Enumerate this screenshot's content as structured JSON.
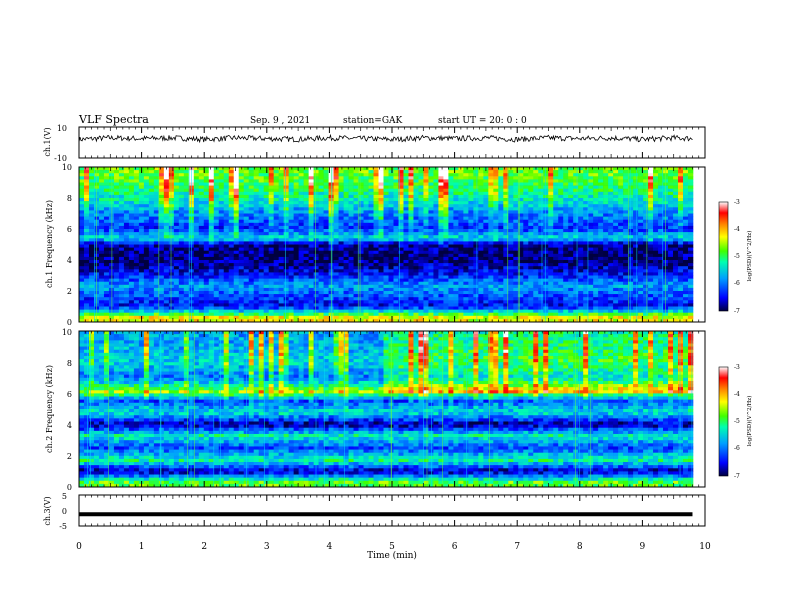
{
  "header": {
    "title": "VLF Spectra",
    "date": "Sep. 9 , 2021",
    "station": "station=GAK",
    "start_ut": "start UT =  20: 0 : 0"
  },
  "time_axis": {
    "label": "Time (min)",
    "ticks": [
      "0",
      "1",
      "2",
      "3",
      "4",
      "5",
      "6",
      "7",
      "8",
      "9",
      "10"
    ]
  },
  "panels": {
    "ch1_wave": {
      "ylabel": "ch.1(V)",
      "yticks": [
        "10",
        "-10"
      ]
    },
    "ch1_spec": {
      "ylabel": "ch.1 Frequency (kHz)",
      "yticks": [
        "0",
        "2",
        "4",
        "6",
        "8",
        "10"
      ]
    },
    "ch2_spec": {
      "ylabel": "ch.2 Frequency (kHz)",
      "yticks": [
        "0",
        "2",
        "4",
        "6",
        "8",
        "10"
      ]
    },
    "ch3_wave": {
      "ylabel": "ch.3(V)",
      "yticks": [
        "5",
        "0",
        "-5"
      ]
    }
  },
  "colorbar": {
    "label": "log(PSD)(V^2/Hz)",
    "ticks": [
      "-3",
      "-4",
      "-5",
      "-6",
      "-7"
    ],
    "colors": [
      "#000060",
      "#0000ff",
      "#00a0ff",
      "#00ffb0",
      "#40ff00",
      "#ffff00",
      "#ff8000",
      "#ff0000",
      "#ffffff"
    ]
  },
  "chart_data": [
    {
      "type": "line",
      "name": "ch.1 waveform",
      "xlabel": "Time (min)",
      "ylabel": "ch.1(V)",
      "xlim": [
        0,
        10
      ],
      "ylim": [
        -10,
        10
      ],
      "x": [
        0,
        0.5,
        1,
        1.5,
        2,
        2.5,
        3,
        3.5,
        4,
        4.5,
        5,
        5.5,
        6,
        6.5,
        7,
        7.5,
        8,
        8.5,
        9,
        9.5,
        9.8
      ],
      "y": [
        2,
        3,
        2.5,
        3,
        2,
        3,
        2.5,
        2,
        3,
        2.5,
        2,
        3,
        2.5,
        3,
        2,
        3,
        2.5,
        3,
        2,
        3,
        2.5
      ]
    },
    {
      "type": "heatmap",
      "name": "ch.1 spectrogram",
      "xlabel": "Time (min)",
      "ylabel": "Frequency (kHz)",
      "xlim": [
        0,
        9.8
      ],
      "ylim": [
        0,
        10
      ],
      "zlabel": "log(PSD)(V^2/Hz)",
      "zlim": [
        -7,
        -3
      ],
      "frequency_profile": {
        "freq_khz": [
          0.3,
          1,
          1.6,
          2.3,
          3,
          4,
          5,
          5.4,
          6,
          7,
          8,
          9,
          10
        ],
        "log_psd": [
          -4.3,
          -6.5,
          -6.2,
          -5.8,
          -6.4,
          -6.9,
          -6.8,
          -5.4,
          -6.3,
          -5.9,
          -5.3,
          -4.9,
          -4.7
        ]
      }
    },
    {
      "type": "heatmap",
      "name": "ch.2 spectrogram",
      "xlabel": "Time (min)",
      "ylabel": "Frequency (kHz)",
      "xlim": [
        0,
        9.8
      ],
      "ylim": [
        0,
        10
      ],
      "zlabel": "log(PSD)(V^2/Hz)",
      "zlim": [
        -7,
        -3
      ],
      "frequency_profile": {
        "freq_khz": [
          0.3,
          1,
          1.7,
          2.5,
          3.3,
          4,
          4.8,
          5.5,
          6.1,
          7,
          8,
          9,
          10
        ],
        "log_psd": [
          -4.8,
          -6.8,
          -5.2,
          -6.2,
          -5.3,
          -6.8,
          -5.4,
          -6.2,
          -4.6,
          -6.0,
          -5.5,
          -5.7,
          -5.8
        ]
      }
    },
    {
      "type": "line",
      "name": "ch.3 waveform",
      "xlabel": "Time (min)",
      "ylabel": "ch.3(V)",
      "xlim": [
        0,
        10
      ],
      "ylim": [
        -5,
        5
      ],
      "x": [
        0,
        9.8
      ],
      "y": [
        -1.2,
        -1.2
      ]
    }
  ]
}
